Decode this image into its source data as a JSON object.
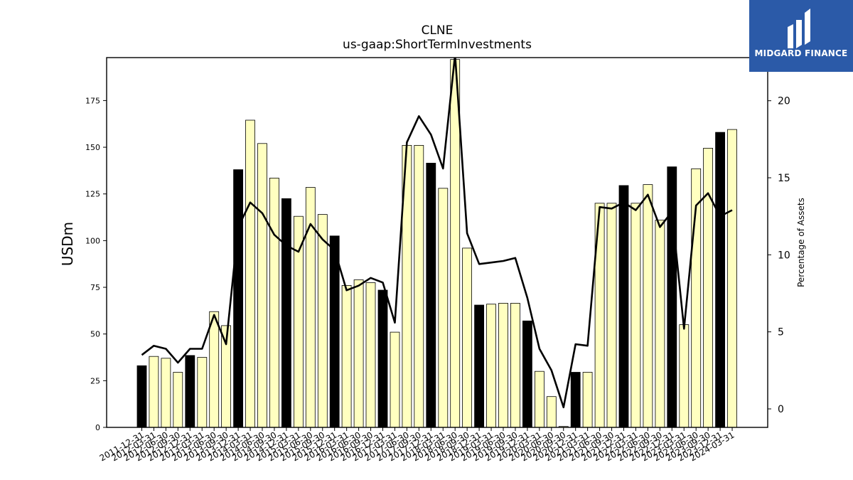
{
  "chart_data": {
    "type": "bar",
    "title": "CLNE",
    "subtitle": "us-gaap:ShortTermInvestments",
    "ylabel": "USDm",
    "y2label": "Percentage of Assets",
    "ylim": [
      0,
      198
    ],
    "y2lim": [
      -1.2,
      22.8
    ],
    "yticks": [
      0,
      25,
      50,
      75,
      100,
      125,
      150,
      175
    ],
    "y2ticks": [
      0,
      5,
      10,
      15,
      20
    ],
    "grid": false,
    "categories": [
      "2011-12-31",
      "2012-03-31",
      "2012-06-30",
      "2012-09-30",
      "2012-12-31",
      "2013-03-31",
      "2013-06-30",
      "2013-09-30",
      "2013-12-31",
      "2014-03-31",
      "2014-06-30",
      "2014-09-30",
      "2014-12-31",
      "2015-03-31",
      "2015-06-30",
      "2015-09-30",
      "2015-12-31",
      "2016-03-31",
      "2016-06-30",
      "2016-09-30",
      "2016-12-31",
      "2017-03-31",
      "2017-06-30",
      "2017-09-30",
      "2017-12-31",
      "2018-03-31",
      "2018-06-30",
      "2018-09-30",
      "2018-12-31",
      "2019-03-31",
      "2019-06-30",
      "2019-09-30",
      "2019-12-31",
      "2020-03-31",
      "2020-06-30",
      "2020-09-30",
      "2020-12-31",
      "2021-03-31",
      "2021-06-30",
      "2021-09-30",
      "2021-12-31",
      "2022-03-31",
      "2022-06-30",
      "2022-09-30",
      "2022-12-31",
      "2023-03-31",
      "2023-06-30",
      "2023-09-30",
      "2023-12-31",
      "2024-03-31"
    ],
    "series": [
      {
        "values": [
          33,
          38,
          37,
          29.5,
          38.5,
          37.5,
          62,
          54.5,
          138,
          164.5,
          152,
          133.5,
          122.5,
          113,
          128.5,
          114,
          102.5,
          76,
          79,
          77.5,
          73.5,
          51,
          151,
          151,
          141.5,
          128,
          197,
          96,
          65.5,
          66,
          66.5,
          66.5,
          57,
          30,
          16.5,
          0.5,
          29.5,
          29.5,
          120,
          120,
          129.5,
          120,
          130,
          111,
          139.5,
          55,
          138.5,
          149.5,
          158,
          159.5
        ],
        "quarter_end": [
          true,
          false,
          false,
          false,
          true,
          false,
          false,
          false,
          true,
          false,
          false,
          false,
          true,
          false,
          false,
          false,
          true,
          false,
          false,
          false,
          true,
          false,
          false,
          false,
          true,
          false,
          false,
          false,
          true,
          false,
          false,
          false,
          true,
          false,
          false,
          false,
          true,
          false,
          false,
          false,
          true,
          false,
          false,
          false,
          true,
          false,
          false,
          false,
          true,
          false
        ]
      },
      {
        "axis": "right",
        "type": "line",
        "values": [
          3.5,
          4.1,
          3.9,
          3.0,
          3.9,
          3.9,
          6.1,
          4.2,
          11.8,
          13.4,
          12.7,
          11.3,
          10.6,
          10.2,
          12.0,
          11.0,
          10.3,
          7.7,
          8.0,
          8.5,
          8.2,
          5.6,
          17.3,
          19.0,
          17.8,
          15.6,
          23.0,
          11.4,
          9.4,
          9.5,
          9.6,
          9.8,
          7.2,
          3.9,
          2.5,
          0.1,
          4.2,
          4.1,
          13.1,
          13.0,
          13.4,
          12.9,
          13.9,
          11.8,
          12.8,
          5.2,
          13.2,
          14.0,
          12.5,
          12.9
        ]
      }
    ],
    "colors": {
      "bar_regular": "#ffffc0",
      "bar_highlight": "#000000",
      "line": "#000000"
    }
  },
  "logo": {
    "text": "MIDGARD FINANCE",
    "background": "#2b5aa8"
  }
}
